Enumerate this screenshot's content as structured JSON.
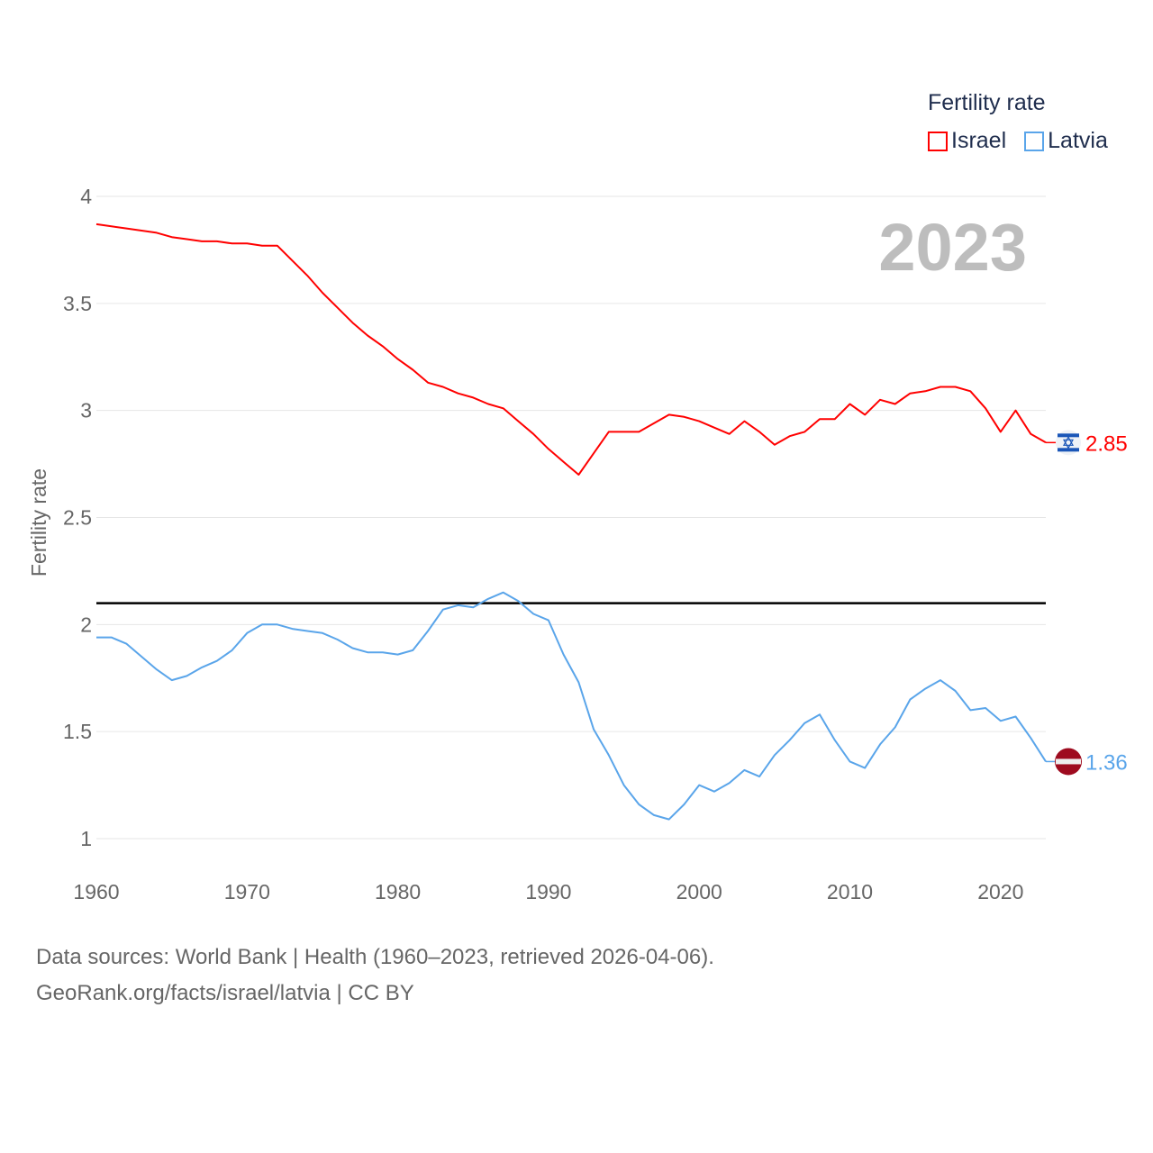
{
  "legend": {
    "title": "Fertility rate",
    "items": [
      "Israel",
      "Latvia"
    ]
  },
  "year_label": "2023",
  "footer": {
    "line1": "Data sources: World Bank | Health (1960–2023, retrieved 2026-04-06).",
    "line2": "GeoRank.org/facts/israel/latvia | CC BY"
  },
  "chart_data": {
    "type": "line",
    "title": "",
    "xlabel": "",
    "ylabel": "Fertility rate",
    "xlim": [
      1960,
      2023
    ],
    "ylim": [
      1,
      4
    ],
    "yticks": [
      "1",
      "1.5",
      "2",
      "2.5",
      "3",
      "3.5",
      "4"
    ],
    "yticks_values": [
      1,
      1.5,
      2,
      2.5,
      3,
      3.5,
      4
    ],
    "xticks": [
      "1960",
      "1970",
      "1980",
      "1990",
      "2000",
      "2010",
      "2020"
    ],
    "grid": true,
    "legend_position": "top-right",
    "reference_line": {
      "y": 2.1,
      "color": "#000000"
    },
    "x": [
      1960,
      1961,
      1962,
      1963,
      1964,
      1965,
      1966,
      1967,
      1968,
      1969,
      1970,
      1971,
      1972,
      1973,
      1974,
      1975,
      1976,
      1977,
      1978,
      1979,
      1980,
      1981,
      1982,
      1983,
      1984,
      1985,
      1986,
      1987,
      1988,
      1989,
      1990,
      1991,
      1992,
      1993,
      1994,
      1995,
      1996,
      1997,
      1998,
      1999,
      2000,
      2001,
      2002,
      2003,
      2004,
      2005,
      2006,
      2007,
      2008,
      2009,
      2010,
      2011,
      2012,
      2013,
      2014,
      2015,
      2016,
      2017,
      2018,
      2019,
      2020,
      2021,
      2022,
      2023
    ],
    "series": [
      {
        "name": "Israel",
        "color": "#ff0000",
        "end_label": "2.85",
        "values": [
          3.87,
          3.86,
          3.85,
          3.84,
          3.83,
          3.81,
          3.8,
          3.79,
          3.79,
          3.78,
          3.78,
          3.77,
          3.77,
          3.7,
          3.63,
          3.55,
          3.48,
          3.41,
          3.35,
          3.3,
          3.24,
          3.19,
          3.13,
          3.11,
          3.08,
          3.06,
          3.03,
          3.01,
          2.95,
          2.89,
          2.82,
          2.76,
          2.7,
          2.8,
          2.9,
          2.9,
          2.9,
          2.94,
          2.98,
          2.97,
          2.95,
          2.92,
          2.89,
          2.95,
          2.9,
          2.84,
          2.88,
          2.9,
          2.96,
          2.96,
          3.03,
          2.98,
          3.05,
          3.03,
          3.08,
          3.09,
          3.11,
          3.11,
          3.09,
          3.01,
          2.9,
          3.0,
          2.89,
          2.85
        ]
      },
      {
        "name": "Latvia",
        "color": "#5aa5ea",
        "end_label": "1.36",
        "values": [
          1.94,
          1.94,
          1.91,
          1.85,
          1.79,
          1.74,
          1.76,
          1.8,
          1.83,
          1.88,
          1.96,
          2.0,
          2.0,
          1.98,
          1.97,
          1.96,
          1.93,
          1.89,
          1.87,
          1.87,
          1.86,
          1.88,
          1.97,
          2.07,
          2.09,
          2.08,
          2.12,
          2.15,
          2.11,
          2.05,
          2.02,
          1.86,
          1.73,
          1.51,
          1.39,
          1.25,
          1.16,
          1.11,
          1.09,
          1.16,
          1.25,
          1.22,
          1.26,
          1.32,
          1.29,
          1.39,
          1.46,
          1.54,
          1.58,
          1.46,
          1.36,
          1.33,
          1.44,
          1.52,
          1.65,
          1.7,
          1.74,
          1.69,
          1.6,
          1.61,
          1.55,
          1.57,
          1.47,
          1.36
        ]
      }
    ]
  }
}
